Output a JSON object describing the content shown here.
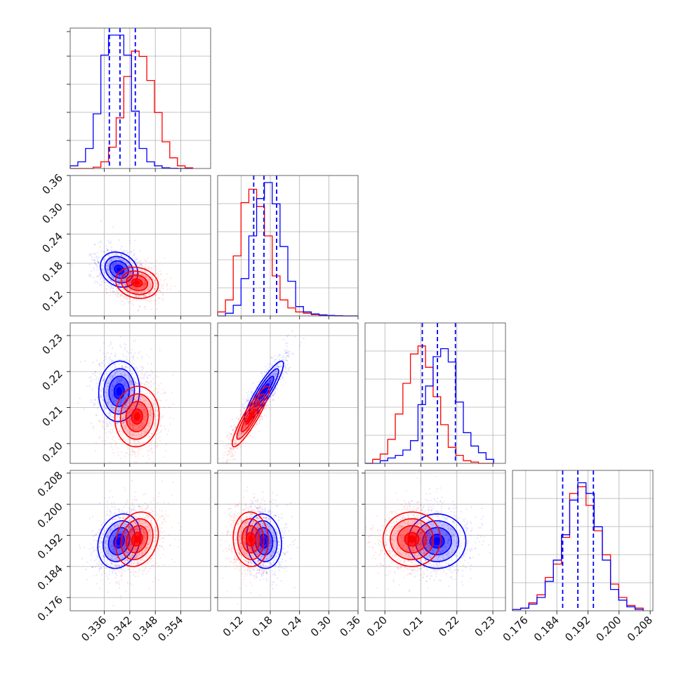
{
  "chart_data": {
    "type": "corner",
    "dimensions": 4,
    "colors": {
      "series_a": "#0000ff",
      "series_b": "#ff0000"
    },
    "grid": true,
    "axes": [
      {
        "range": [
          0.328,
          0.361
        ],
        "ticks": [
          0.336,
          0.342,
          0.348,
          0.354
        ],
        "tick_labels": [
          "0.336",
          "0.342",
          "0.348",
          "0.354"
        ]
      },
      {
        "range": [
          0.072,
          0.36
        ],
        "ticks": [
          0.12,
          0.18,
          0.24,
          0.3,
          0.36
        ],
        "tick_labels": [
          "0.12",
          "0.18",
          "0.24",
          "0.30",
          "0.36"
        ]
      },
      {
        "range": [
          0.1945,
          0.2335
        ],
        "ticks": [
          0.2,
          0.21,
          0.22,
          0.23
        ],
        "tick_labels": [
          "0.20",
          "0.21",
          "0.22",
          "0.23"
        ]
      },
      {
        "range": [
          0.1726,
          0.2087
        ],
        "ticks": [
          0.176,
          0.184,
          0.192,
          0.2,
          0.208
        ],
        "tick_labels": [
          "0.176",
          "0.184",
          "0.192",
          "0.200",
          "0.208"
        ]
      }
    ],
    "marginals": [
      {
        "series_a": {
          "name": "",
          "bins": [
            0.328,
            0.3298,
            0.3316,
            0.3334,
            0.3352,
            0.337,
            0.3388,
            0.3406,
            0.3424,
            0.3442,
            0.346,
            0.3478,
            0.3496,
            0.3514,
            0.3532,
            0.355,
            0.3568
          ],
          "counts": [
            0.02,
            0.05,
            0.15,
            0.41,
            0.85,
            1.0,
            1.0,
            0.85,
            0.43,
            0.15,
            0.05,
            0.02,
            0.005,
            0.002,
            0.0,
            0.0
          ]
        },
        "series_b": {
          "name": "",
          "bins": [
            0.328,
            0.3298,
            0.3316,
            0.3334,
            0.3352,
            0.337,
            0.3388,
            0.3406,
            0.3424,
            0.3442,
            0.346,
            0.3478,
            0.3496,
            0.3514,
            0.3532,
            0.355,
            0.3568
          ],
          "counts": [
            0.0,
            0.0,
            0.0,
            0.01,
            0.05,
            0.16,
            0.38,
            0.69,
            0.88,
            0.84,
            0.66,
            0.42,
            0.2,
            0.08,
            0.02,
            0.005
          ]
        },
        "quantiles": [
          0.3372,
          0.3397,
          0.3433
        ]
      },
      {
        "series_a": {
          "name": "",
          "bins": [
            0.072,
            0.088,
            0.104,
            0.12,
            0.136,
            0.152,
            0.168,
            0.184,
            0.2,
            0.216,
            0.232,
            0.248,
            0.264,
            0.28,
            0.296,
            0.312,
            0.328,
            0.344,
            0.36
          ],
          "counts": [
            0.0,
            0.02,
            0.08,
            0.28,
            0.6,
            0.88,
            1.0,
            0.84,
            0.52,
            0.26,
            0.07,
            0.03,
            0.015,
            0.008,
            0.004,
            0.002,
            0.0,
            0.0
          ]
        },
        "series_b": {
          "name": "",
          "bins": [
            0.072,
            0.088,
            0.104,
            0.12,
            0.136,
            0.152,
            0.168,
            0.184,
            0.2,
            0.216,
            0.232,
            0.248,
            0.264,
            0.28,
            0.296,
            0.312,
            0.328,
            0.344,
            0.36
          ],
          "counts": [
            0.03,
            0.12,
            0.45,
            0.85,
            0.95,
            0.82,
            0.6,
            0.3,
            0.12,
            0.06,
            0.03,
            0.02,
            0.01,
            0.005,
            0.002,
            0.0,
            0.0,
            0.0
          ]
        },
        "quantiles": [
          0.146,
          0.167,
          0.193
        ]
      },
      {
        "series_a": {
          "name": "",
          "bins": [
            0.1945,
            0.1966,
            0.1987,
            0.2008,
            0.2029,
            0.205,
            0.2071,
            0.2092,
            0.2113,
            0.2134,
            0.2155,
            0.2176,
            0.2197,
            0.2218,
            0.2239,
            0.226,
            0.2281,
            0.2302
          ],
          "counts": [
            0.0,
            0.0,
            0.02,
            0.04,
            0.06,
            0.1,
            0.17,
            0.44,
            0.58,
            0.8,
            0.86,
            0.76,
            0.46,
            0.23,
            0.13,
            0.08,
            0.03
          ]
        },
        "series_b": {
          "name": "",
          "bins": [
            0.1945,
            0.1966,
            0.1987,
            0.2008,
            0.2029,
            0.205,
            0.2071,
            0.2092,
            0.2113,
            0.2134,
            0.2155,
            0.2176,
            0.2197,
            0.2218,
            0.2239,
            0.226,
            0.2281,
            0.2302
          ],
          "counts": [
            0.0,
            0.03,
            0.07,
            0.18,
            0.37,
            0.6,
            0.82,
            0.88,
            0.72,
            0.5,
            0.29,
            0.12,
            0.06,
            0.02,
            0.01,
            0.0,
            0.0
          ]
        },
        "quantiles": [
          0.2104,
          0.2146,
          0.2196
        ]
      },
      {
        "series_a": {
          "name": "",
          "bins": [
            0.1726,
            0.1747,
            0.1768,
            0.1789,
            0.181,
            0.1831,
            0.1852,
            0.1873,
            0.1894,
            0.1915,
            0.1936,
            0.1957,
            0.1978,
            0.1999,
            0.202,
            0.2041,
            0.2062
          ],
          "counts": [
            0.01,
            0.02,
            0.05,
            0.1,
            0.22,
            0.38,
            0.57,
            0.83,
            0.96,
            0.88,
            0.63,
            0.38,
            0.16,
            0.08,
            0.03,
            0.01
          ]
        },
        "series_b": {
          "name": "",
          "bins": [
            0.1726,
            0.1747,
            0.1768,
            0.1789,
            0.181,
            0.1831,
            0.1852,
            0.1873,
            0.1894,
            0.1915,
            0.1936,
            0.1957,
            0.1978,
            0.1999,
            0.202,
            0.2041,
            0.2062
          ],
          "counts": [
            0.01,
            0.02,
            0.06,
            0.12,
            0.25,
            0.35,
            0.55,
            0.88,
            0.93,
            0.79,
            0.6,
            0.42,
            0.2,
            0.1,
            0.04,
            0.02
          ]
        },
        "quantiles": [
          0.1855,
          0.1894,
          0.1934
        ]
      }
    ],
    "pairs": [
      {
        "x_axis": 0,
        "y_axis": 1,
        "series_a": {
          "mean": [
            0.3395,
            0.167
          ],
          "std": [
            0.0022,
            0.018
          ],
          "rho": -0.2
        },
        "series_b": {
          "mean": [
            0.3437,
            0.14
          ],
          "std": [
            0.0025,
            0.016
          ],
          "rho": -0.15
        }
      },
      {
        "x_axis": 0,
        "y_axis": 2,
        "series_a": {
          "mean": [
            0.3395,
            0.2145
          ],
          "std": [
            0.0024,
            0.0042
          ],
          "rho": 0.05
        },
        "series_b": {
          "mean": [
            0.3437,
            0.2075
          ],
          "std": [
            0.0026,
            0.0042
          ],
          "rho": 0.05
        }
      },
      {
        "x_axis": 1,
        "y_axis": 2,
        "series_a": {
          "mean": [
            0.167,
            0.2145
          ],
          "std": [
            0.02,
            0.0042
          ],
          "rho": 0.9
        },
        "series_b": {
          "mean": [
            0.14,
            0.2075
          ],
          "std": [
            0.019,
            0.0042
          ],
          "rho": 0.9
        }
      },
      {
        "x_axis": 0,
        "y_axis": 3,
        "series_a": {
          "mean": [
            0.3395,
            0.1905
          ],
          "std": [
            0.0025,
            0.0035
          ],
          "rho": 0.2
        },
        "series_b": {
          "mean": [
            0.3437,
            0.191
          ],
          "std": [
            0.0025,
            0.0035
          ],
          "rho": 0.2
        }
      },
      {
        "x_axis": 1,
        "y_axis": 3,
        "series_a": {
          "mean": [
            0.167,
            0.1905
          ],
          "std": [
            0.018,
            0.0035
          ],
          "rho": -0.1
        },
        "series_b": {
          "mean": [
            0.14,
            0.191
          ],
          "std": [
            0.018,
            0.0035
          ],
          "rho": -0.05
        }
      },
      {
        "x_axis": 2,
        "y_axis": 3,
        "series_a": {
          "mean": [
            0.2145,
            0.1905
          ],
          "std": [
            0.004,
            0.0035
          ],
          "rho": 0.0
        },
        "series_b": {
          "mean": [
            0.2075,
            0.191
          ],
          "std": [
            0.004,
            0.0035
          ],
          "rho": 0.0
        }
      }
    ],
    "contour_levels_sigma": [
      0.5,
      1.0,
      1.5,
      2.0
    ],
    "scatter": true
  }
}
